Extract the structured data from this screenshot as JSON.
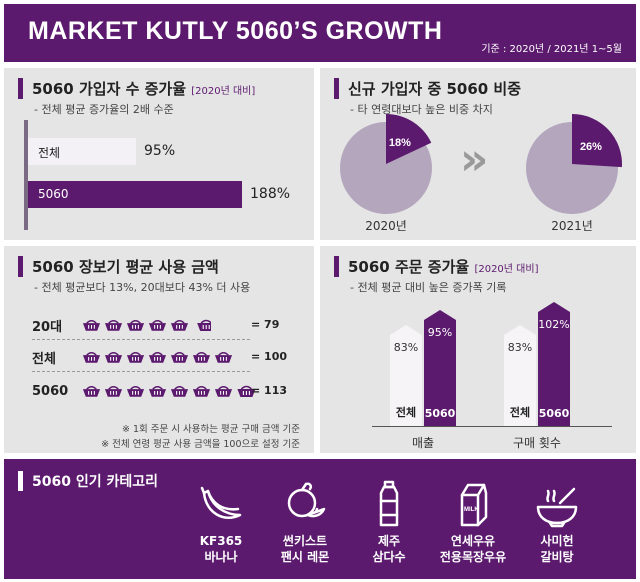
{
  "header": {
    "title": "MARKET KUTLY 5060’S GROWTH",
    "period": "기준 : 2020년 / 2021년 1~5월"
  },
  "colors": {
    "purple": "#5c1a6e",
    "light_purple": "#b8a9c2",
    "panel": "#e5e5e5",
    "pie_bg": "#b3a6bd"
  },
  "panel_signup": {
    "title": "5060 가입자 수 증가율",
    "title_note": "[2020년 대비]",
    "subtitle": "- 전체 평균 증가율의 2배 수준",
    "chart_data": {
      "type": "bar",
      "categories": [
        "전체",
        "5060"
      ],
      "values": [
        95,
        188
      ],
      "value_labels": [
        "95%",
        "188%"
      ],
      "xlim": [
        0,
        200
      ]
    }
  },
  "panel_share": {
    "title": "신규 가입자 중 5060 비중",
    "subtitle": "- 타 연령대보다 높은 비중 차지",
    "chart_data": {
      "type": "pie",
      "categories": [
        "2020년",
        "2021년"
      ],
      "values": [
        18,
        26
      ],
      "value_labels": [
        "18%",
        "26%"
      ]
    },
    "arrow": "»"
  },
  "panel_spend": {
    "title": "5060 장보기 평균 사용 금액",
    "subtitle": "- 전체 평균보다 13%, 20대보다 43% 더 사용",
    "chart_data": {
      "type": "bar",
      "categories": [
        "20대",
        "전체",
        "5060"
      ],
      "values": [
        79,
        100,
        113
      ],
      "value_labels": [
        "= 79",
        "= 100",
        "= 113"
      ]
    },
    "notes": [
      "※ 1회 주문 시 사용하는 평균 구매 금액 기준",
      "※ 전체 연령 평균 사용 금액을 100으로 설정 기준"
    ]
  },
  "panel_orders": {
    "title": "5060 주문 증가율",
    "title_note": "[2020년 대비]",
    "subtitle": "- 전체 평균 대비 높은 증가폭 기록",
    "chart_data": {
      "type": "bar",
      "categories": [
        "매출",
        "구매 횟수"
      ],
      "series": [
        {
          "name": "전체",
          "values": [
            83,
            83
          ]
        },
        {
          "name": "5060",
          "values": [
            95,
            102
          ]
        }
      ],
      "value_labels": [
        [
          "83%",
          "95%"
        ],
        [
          "83%",
          "102%"
        ]
      ],
      "ylim": [
        0,
        110
      ]
    }
  },
  "popular": {
    "title": "5060 인기 카테고리",
    "items": [
      {
        "line1": "KF365",
        "line2": "바나나",
        "icon": "banana-icon"
      },
      {
        "line1": "썬키스트",
        "line2": "팬시 레몬",
        "icon": "lemon-icon"
      },
      {
        "line1": "제주",
        "line2": "삼다수",
        "icon": "water-bottle-icon"
      },
      {
        "line1": "연세우유",
        "line2": "전용목장우유",
        "icon": "milk-carton-icon"
      },
      {
        "line1": "사미헌",
        "line2": "갈비탕",
        "icon": "soup-bowl-icon"
      }
    ],
    "milk_text": "MILK"
  }
}
